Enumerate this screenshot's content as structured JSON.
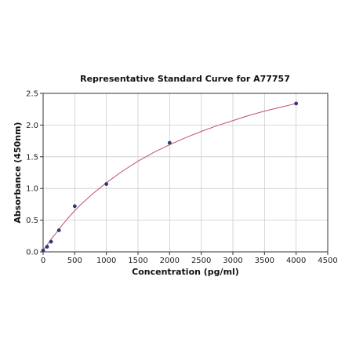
{
  "chart_data": {
    "type": "scatter",
    "title": "Representative Standard Curve for A77757",
    "xlabel": "Concentration (pg/ml)",
    "ylabel": "Absorbance (450nm)",
    "xlim": [
      0,
      4500
    ],
    "ylim": [
      0,
      2.5
    ],
    "xticks": [
      0,
      500,
      1000,
      1500,
      2000,
      2500,
      3000,
      3500,
      4000,
      4500
    ],
    "yticks": [
      0.0,
      0.5,
      1.0,
      1.5,
      2.0,
      2.5
    ],
    "xtick_labels": [
      "0",
      "500",
      "1000",
      "1500",
      "2000",
      "2500",
      "3000",
      "3500",
      "4000",
      "4500"
    ],
    "ytick_labels": [
      "0.0",
      "0.5",
      "1.0",
      "1.5",
      "2.0",
      "2.5"
    ],
    "grid": true,
    "series": [
      {
        "type": "scatter",
        "x": [
          0,
          62.5,
          125,
          250,
          500,
          1000,
          2000,
          4000
        ],
        "y": [
          0.02,
          0.08,
          0.16,
          0.34,
          0.72,
          1.07,
          1.72,
          2.34
        ],
        "color": "#2e3a7a"
      },
      {
        "type": "line",
        "fit": "4PL",
        "x": [
          0,
          25,
          50,
          100,
          150,
          200,
          300,
          400,
          500,
          600,
          800,
          1000,
          1250,
          1500,
          1750,
          2000,
          2250,
          2500,
          2750,
          3000,
          3250,
          3500,
          3750,
          4000
        ],
        "y": [
          0.03,
          0.06,
          0.09,
          0.16,
          0.23,
          0.29,
          0.42,
          0.54,
          0.65,
          0.75,
          0.93,
          1.09,
          1.27,
          1.43,
          1.57,
          1.69,
          1.8,
          1.9,
          1.99,
          2.07,
          2.15,
          2.22,
          2.28,
          2.34
        ],
        "color": "#c0506a"
      }
    ]
  }
}
